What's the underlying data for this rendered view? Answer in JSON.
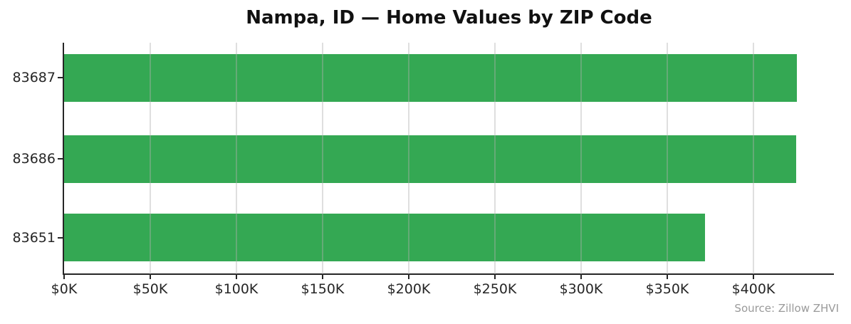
{
  "title": "Nampa, ID — Home Values by ZIP Code",
  "source_note": "Source: Zillow ZHVI",
  "colors": {
    "bar": "#34a853",
    "axis": "#262626",
    "grid": "#b0b0b0",
    "title_text": "#111111",
    "source_text": "#9a9a9a"
  },
  "chart_data": {
    "type": "bar",
    "orientation": "horizontal",
    "title": "Nampa, ID — Home Values by ZIP Code",
    "categories": [
      "83687",
      "83686",
      "83651"
    ],
    "values": [
      425200,
      424700,
      371900
    ],
    "xlabel": "",
    "ylabel": "",
    "xlim": [
      0,
      446700
    ],
    "xticks": [
      {
        "value": 0,
        "label": "$0K"
      },
      {
        "value": 50000,
        "label": "$50K"
      },
      {
        "value": 100000,
        "label": "$100K"
      },
      {
        "value": 150000,
        "label": "$150K"
      },
      {
        "value": 200000,
        "label": "$200K"
      },
      {
        "value": 250000,
        "label": "$250K"
      },
      {
        "value": 300000,
        "label": "$300K"
      },
      {
        "value": 350000,
        "label": "$350K"
      },
      {
        "value": 400000,
        "label": "$400K"
      }
    ],
    "grid": true,
    "grid_axis": "x",
    "legend": false,
    "bar_color": "#34a853",
    "annotation": "Source: Zillow ZHVI"
  }
}
